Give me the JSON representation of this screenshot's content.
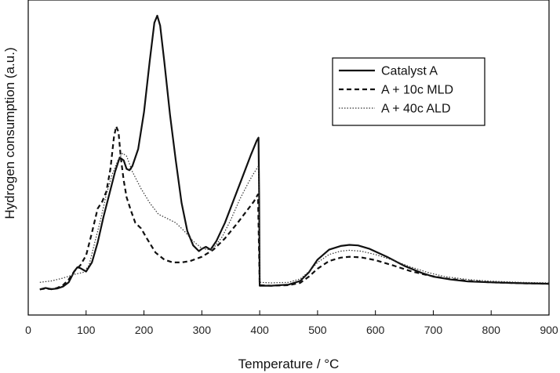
{
  "chart_data": {
    "type": "line",
    "title": "",
    "xlabel": "Temperature / °C",
    "ylabel": "Hydrogen consumption (a.u.)",
    "xlim": [
      0,
      900
    ],
    "ylim": [
      0,
      1.0
    ],
    "x_ticks": [
      0,
      100,
      200,
      300,
      400,
      500,
      600,
      700,
      800,
      900
    ],
    "y_ticks": [],
    "grid": false,
    "legend_position": "top-right",
    "series": [
      {
        "name": "Catalyst A",
        "style": "solid",
        "width": 2.2,
        "color": "#111111",
        "points": [
          [
            20,
            0.035
          ],
          [
            30,
            0.04
          ],
          [
            40,
            0.036
          ],
          [
            50,
            0.038
          ],
          [
            60,
            0.045
          ],
          [
            70,
            0.06
          ],
          [
            80,
            0.1
          ],
          [
            85,
            0.113
          ],
          [
            90,
            0.11
          ],
          [
            100,
            0.098
          ],
          [
            110,
            0.13
          ],
          [
            120,
            0.2
          ],
          [
            130,
            0.29
          ],
          [
            140,
            0.37
          ],
          [
            150,
            0.45
          ],
          [
            158,
            0.5
          ],
          [
            165,
            0.49
          ],
          [
            170,
            0.46
          ],
          [
            175,
            0.455
          ],
          [
            180,
            0.47
          ],
          [
            190,
            0.53
          ],
          [
            200,
            0.66
          ],
          [
            210,
            0.84
          ],
          [
            218,
            0.975
          ],
          [
            223,
            1.0
          ],
          [
            228,
            0.965
          ],
          [
            235,
            0.84
          ],
          [
            245,
            0.65
          ],
          [
            255,
            0.49
          ],
          [
            265,
            0.34
          ],
          [
            275,
            0.24
          ],
          [
            285,
            0.19
          ],
          [
            295,
            0.17
          ],
          [
            300,
            0.178
          ],
          [
            307,
            0.185
          ],
          [
            315,
            0.175
          ],
          [
            325,
            0.205
          ],
          [
            340,
            0.27
          ],
          [
            355,
            0.35
          ],
          [
            370,
            0.43
          ],
          [
            385,
            0.51
          ],
          [
            395,
            0.56
          ],
          [
            398,
            0.57
          ],
          [
            399,
            0.37
          ],
          [
            400,
            0.05
          ],
          [
            400,
            0.048
          ],
          [
            420,
            0.048
          ],
          [
            450,
            0.052
          ],
          [
            470,
            0.065
          ],
          [
            485,
            0.095
          ],
          [
            500,
            0.14
          ],
          [
            520,
            0.175
          ],
          [
            540,
            0.188
          ],
          [
            555,
            0.192
          ],
          [
            570,
            0.19
          ],
          [
            590,
            0.178
          ],
          [
            620,
            0.15
          ],
          [
            650,
            0.118
          ],
          [
            680,
            0.093
          ],
          [
            700,
            0.08
          ],
          [
            730,
            0.07
          ],
          [
            760,
            0.063
          ],
          [
            800,
            0.06
          ],
          [
            850,
            0.057
          ],
          [
            900,
            0.055
          ]
        ]
      },
      {
        "name": "A + 10c MLD",
        "style": "dashed",
        "width": 2.2,
        "color": "#111111",
        "points": [
          [
            20,
            0.035
          ],
          [
            30,
            0.038
          ],
          [
            40,
            0.036
          ],
          [
            50,
            0.04
          ],
          [
            60,
            0.05
          ],
          [
            70,
            0.07
          ],
          [
            80,
            0.1
          ],
          [
            90,
            0.12
          ],
          [
            100,
            0.155
          ],
          [
            110,
            0.235
          ],
          [
            120,
            0.32
          ],
          [
            128,
            0.345
          ],
          [
            135,
            0.38
          ],
          [
            142,
            0.46
          ],
          [
            148,
            0.57
          ],
          [
            152,
            0.61
          ],
          [
            156,
            0.59
          ],
          [
            160,
            0.5
          ],
          [
            165,
            0.42
          ],
          [
            170,
            0.36
          ],
          [
            178,
            0.31
          ],
          [
            185,
            0.27
          ],
          [
            195,
            0.25
          ],
          [
            205,
            0.215
          ],
          [
            220,
            0.165
          ],
          [
            235,
            0.14
          ],
          [
            250,
            0.13
          ],
          [
            265,
            0.13
          ],
          [
            280,
            0.135
          ],
          [
            300,
            0.15
          ],
          [
            320,
            0.175
          ],
          [
            340,
            0.215
          ],
          [
            360,
            0.265
          ],
          [
            375,
            0.305
          ],
          [
            390,
            0.345
          ],
          [
            397,
            0.37
          ],
          [
            400,
            0.05
          ],
          [
            420,
            0.048
          ],
          [
            450,
            0.05
          ],
          [
            470,
            0.058
          ],
          [
            485,
            0.08
          ],
          [
            500,
            0.108
          ],
          [
            520,
            0.135
          ],
          [
            540,
            0.147
          ],
          [
            555,
            0.15
          ],
          [
            575,
            0.148
          ],
          [
            600,
            0.138
          ],
          [
            630,
            0.12
          ],
          [
            660,
            0.1
          ],
          [
            690,
            0.085
          ],
          [
            720,
            0.074
          ],
          [
            760,
            0.065
          ],
          [
            800,
            0.06
          ],
          [
            850,
            0.057
          ],
          [
            900,
            0.055
          ]
        ]
      },
      {
        "name": "A + 40c ALD",
        "style": "dotted",
        "width": 1.2,
        "color": "#333333",
        "points": [
          [
            20,
            0.06
          ],
          [
            40,
            0.065
          ],
          [
            60,
            0.075
          ],
          [
            80,
            0.088
          ],
          [
            95,
            0.095
          ],
          [
            105,
            0.12
          ],
          [
            115,
            0.2
          ],
          [
            125,
            0.28
          ],
          [
            135,
            0.37
          ],
          [
            145,
            0.44
          ],
          [
            155,
            0.49
          ],
          [
            163,
            0.515
          ],
          [
            170,
            0.505
          ],
          [
            180,
            0.45
          ],
          [
            195,
            0.39
          ],
          [
            210,
            0.34
          ],
          [
            225,
            0.3
          ],
          [
            240,
            0.285
          ],
          [
            255,
            0.27
          ],
          [
            270,
            0.24
          ],
          [
            285,
            0.205
          ],
          [
            300,
            0.18
          ],
          [
            310,
            0.175
          ],
          [
            320,
            0.18
          ],
          [
            335,
            0.22
          ],
          [
            350,
            0.28
          ],
          [
            365,
            0.35
          ],
          [
            380,
            0.41
          ],
          [
            390,
            0.445
          ],
          [
            398,
            0.47
          ],
          [
            399,
            0.3
          ],
          [
            400,
            0.06
          ],
          [
            420,
            0.058
          ],
          [
            450,
            0.06
          ],
          [
            470,
            0.072
          ],
          [
            485,
            0.098
          ],
          [
            500,
            0.13
          ],
          [
            520,
            0.158
          ],
          [
            540,
            0.17
          ],
          [
            555,
            0.173
          ],
          [
            575,
            0.17
          ],
          [
            600,
            0.158
          ],
          [
            630,
            0.138
          ],
          [
            660,
            0.115
          ],
          [
            690,
            0.095
          ],
          [
            720,
            0.08
          ],
          [
            760,
            0.07
          ],
          [
            800,
            0.064
          ],
          [
            850,
            0.06
          ],
          [
            900,
            0.058
          ]
        ]
      }
    ]
  }
}
